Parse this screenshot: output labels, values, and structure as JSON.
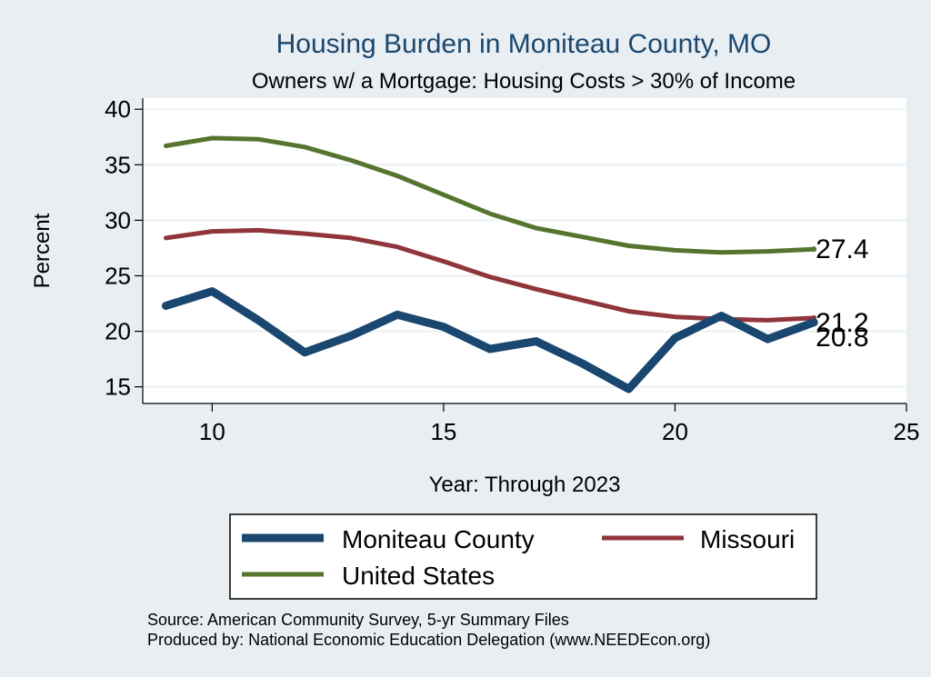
{
  "chart_data": {
    "type": "line",
    "title": "Housing Burden in Moniteau County, MO",
    "subtitle": "Owners w/ a Mortgage: Housing Costs > 30% of Income",
    "xlabel": "Year: Through 2023",
    "ylabel": "Percent",
    "xlim": [
      8.5,
      25
    ],
    "ylim": [
      13.5,
      41
    ],
    "xticks": [
      10,
      15,
      20,
      25
    ],
    "yticks": [
      15,
      20,
      25,
      30,
      35,
      40
    ],
    "x": [
      9,
      10,
      11,
      12,
      13,
      14,
      15,
      16,
      17,
      18,
      19,
      20,
      21,
      22,
      23
    ],
    "series": [
      {
        "name": "Moniteau County",
        "color": "#1a476f",
        "values": [
          22.3,
          23.6,
          21.0,
          18.1,
          19.6,
          21.5,
          20.4,
          18.4,
          19.1,
          17.1,
          14.8,
          19.4,
          21.4,
          19.3,
          20.8
        ],
        "end_label": "20.8"
      },
      {
        "name": "Missouri",
        "color": "#90353b",
        "values": [
          28.4,
          29.0,
          29.1,
          28.8,
          28.4,
          27.6,
          26.3,
          24.9,
          23.8,
          22.8,
          21.8,
          21.3,
          21.1,
          21.0,
          21.2
        ],
        "end_label": "21.2"
      },
      {
        "name": "United States",
        "color": "#55752f",
        "values": [
          36.7,
          37.4,
          37.3,
          36.6,
          35.4,
          34.0,
          32.3,
          30.6,
          29.3,
          28.5,
          27.7,
          27.3,
          27.1,
          27.2,
          27.4
        ],
        "end_label": "27.4"
      }
    ],
    "legend": {
      "position": "bottom",
      "entries": [
        "Moniteau County",
        "Missouri",
        "United States"
      ]
    },
    "grid": true,
    "notes": [
      "Source: American Community Survey, 5-yr Summary Files",
      "Produced by: National Economic Education Delegation (www.NEEDEcon.org)"
    ]
  }
}
